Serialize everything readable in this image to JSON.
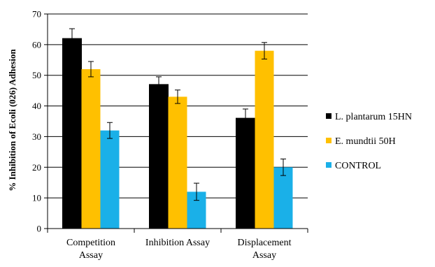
{
  "chart_data": {
    "type": "bar",
    "ylabel": "% Inhibition of Ecoli (026) Adhesion",
    "xlabel": "",
    "ylim": [
      0,
      70
    ],
    "ytick_step": 10,
    "grid": true,
    "legend_position": "right",
    "categories": [
      [
        "Competition",
        "Assay"
      ],
      [
        "Inhibition Assay"
      ],
      [
        "Displacement",
        "Assay"
      ]
    ],
    "series": [
      {
        "name": "L. plantarum 15HN",
        "color": "#000000",
        "values": [
          62,
          47,
          36
        ],
        "errors": [
          3.2,
          2.5,
          3.0
        ]
      },
      {
        "name": "E. mundtii 50H",
        "color": "#ffc000",
        "values": [
          52,
          43,
          58
        ],
        "errors": [
          2.5,
          2.2,
          2.7
        ]
      },
      {
        "name": "CONTROL",
        "color": "#1ab0e8",
        "values": [
          32,
          12,
          20
        ],
        "errors": [
          2.6,
          2.8,
          2.7
        ]
      }
    ]
  }
}
